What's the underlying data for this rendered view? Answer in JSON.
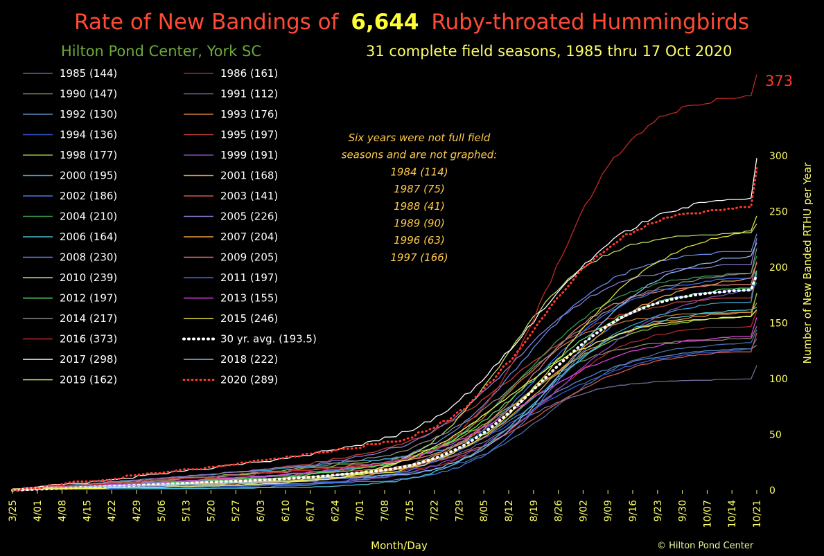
{
  "colors": {
    "title_red": "#ff4a35",
    "title_yellow": "#ffff33",
    "location_green": "#6dab3a",
    "subtitle_yellow": "#ffff66",
    "note_orange": "#ffc94a",
    "axis_yellow": "#ffff66",
    "peak_red": "#ff3a2a"
  },
  "header": {
    "title_part1": "Rate of New Bandings of",
    "title_count": "6,644",
    "title_part2": "Ruby-throated Hummingbirds",
    "location": "Hilton Pond Center, York SC",
    "seasons": "31 complete field seasons, 1985 thru  17 Oct 2020"
  },
  "note": {
    "lines": [
      "Six years were not full field",
      "seasons and are not graphed:",
      "1984 (114)",
      "1987 (75)",
      "1988 (41)",
      "1989 (90)",
      "1996 (63)",
      "1997 (166)"
    ]
  },
  "peak_label": "373",
  "copyright": "© Hilton Pond Center",
  "chart_data": {
    "type": "line",
    "title": "Rate of New Bandings of 6,644 Ruby-throated Hummingbirds",
    "xlabel": "Month/Day",
    "ylabel": "Number of New Banded RTHU per Year",
    "x_ticks": [
      "3/25",
      "4/01",
      "4/08",
      "4/15",
      "4/22",
      "4/29",
      "5/06",
      "5/13",
      "5/20",
      "5/27",
      "6/03",
      "6/10",
      "6/17",
      "6/24",
      "7/01",
      "7/08",
      "7/15",
      "7/22",
      "7/29",
      "8/05",
      "8/12",
      "8/19",
      "8/26",
      "9/02",
      "9/09",
      "9/16",
      "9/23",
      "9/30",
      "10/07",
      "10/14",
      "10/21"
    ],
    "y_ticks": [
      0,
      50,
      100,
      150,
      200,
      250,
      300
    ],
    "ylim": [
      0,
      380
    ],
    "y_axis_side": "right",
    "grid": false,
    "legend_position": "left",
    "series": [
      {
        "name": "1985 (144)",
        "total": 144,
        "color": "#4a6fa8",
        "style": "solid"
      },
      {
        "name": "1986 (161)",
        "total": 161,
        "color": "#b02a2a",
        "style": "solid"
      },
      {
        "name": "1990 (147)",
        "total": 147,
        "color": "#8a8a6a",
        "style": "solid"
      },
      {
        "name": "1991 (112)",
        "total": 112,
        "color": "#7a6a9a",
        "style": "solid"
      },
      {
        "name": "1992 (130)",
        "total": 130,
        "color": "#5a8ac0",
        "style": "solid"
      },
      {
        "name": "1993 (176)",
        "total": 176,
        "color": "#d07a3a",
        "style": "solid"
      },
      {
        "name": "1994 (136)",
        "total": 136,
        "color": "#3a5ad0",
        "style": "solid"
      },
      {
        "name": "1995 (197)",
        "total": 197,
        "color": "#c0403a",
        "style": "solid"
      },
      {
        "name": "1998 (177)",
        "total": 177,
        "color": "#9ac040",
        "style": "solid"
      },
      {
        "name": "1999 (191)",
        "total": 191,
        "color": "#8a4ac0",
        "style": "solid"
      },
      {
        "name": "2000 (195)",
        "total": 195,
        "color": "#3aa0c8",
        "style": "solid"
      },
      {
        "name": "2001 (168)",
        "total": 168,
        "color": "#e0903a",
        "style": "solid"
      },
      {
        "name": "2002 (186)",
        "total": 186,
        "color": "#4a7ae0",
        "style": "solid"
      },
      {
        "name": "2003 (141)",
        "total": 141,
        "color": "#d05a4a",
        "style": "solid"
      },
      {
        "name": "2004 (210)",
        "total": 210,
        "color": "#3a9a4a",
        "style": "solid"
      },
      {
        "name": "2005 (226)",
        "total": 226,
        "color": "#8a7ad0",
        "style": "solid"
      },
      {
        "name": "2006 (164)",
        "total": 164,
        "color": "#4ac0d0",
        "style": "solid"
      },
      {
        "name": "2007 (204)",
        "total": 204,
        "color": "#f0a040",
        "style": "solid"
      },
      {
        "name": "2008 (230)",
        "total": 230,
        "color": "#6a8ae0",
        "style": "solid"
      },
      {
        "name": "2009 (205)",
        "total": 205,
        "color": "#e07a7a",
        "style": "solid"
      },
      {
        "name": "2010 (239)",
        "total": 239,
        "color": "#c0e070",
        "style": "solid"
      },
      {
        "name": "2011 (197)",
        "total": 197,
        "color": "#3a6af0",
        "style": "solid"
      },
      {
        "name": "2012 (197)",
        "total": 197,
        "color": "#5ae06a",
        "style": "solid"
      },
      {
        "name": "2013 (155)",
        "total": 155,
        "color": "#e040e0",
        "style": "solid"
      },
      {
        "name": "2014 (217)",
        "total": 217,
        "color": "#8a8a8a",
        "style": "solid"
      },
      {
        "name": "2015 (246)",
        "total": 246,
        "color": "#e0e040",
        "style": "solid"
      },
      {
        "name": "2016 (373)",
        "total": 373,
        "color": "#c02a2a",
        "style": "solid"
      },
      {
        "name": "30 yr. avg. (193.5)",
        "total": 193.5,
        "color": "#ffffff",
        "style": "dotted-thick"
      },
      {
        "name": "2017 (298)",
        "total": 298,
        "color": "#ffffff",
        "style": "solid"
      },
      {
        "name": "2018 (222)",
        "total": 222,
        "color": "#8ab8f0",
        "style": "solid"
      },
      {
        "name": "2019 (162)",
        "total": 162,
        "color": "#f0f060",
        "style": "solid"
      },
      {
        "name": "2020 (289)",
        "total": 289,
        "color": "#ff3a2a",
        "style": "dotted"
      }
    ]
  }
}
